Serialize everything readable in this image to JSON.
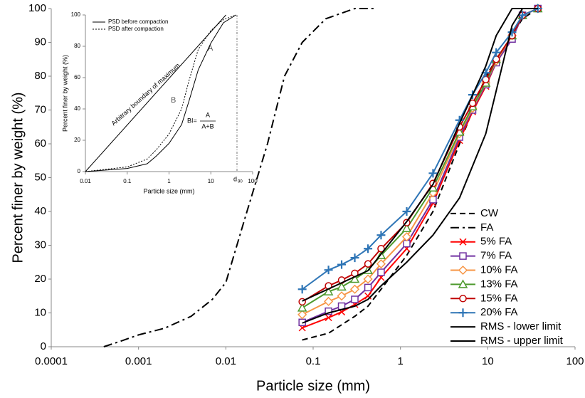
{
  "chart_data": [
    {
      "type": "line",
      "x_label": "Particle size (mm)",
      "y_label": "Percent finer by weight (%)",
      "xscale": "log",
      "xlim": [
        0.0001,
        100
      ],
      "xticks": [
        0.0001,
        0.001,
        0.01,
        0.1,
        1,
        10,
        100
      ],
      "ylim": [
        0,
        100
      ],
      "yticks": [
        0,
        10,
        20,
        30,
        40,
        50,
        60,
        70,
        80,
        90,
        100
      ],
      "grid": false,
      "legend": "lower right",
      "series": [
        {
          "name": "CW",
          "color": "#000000",
          "dash": "dashed",
          "marker": "none",
          "x": [
            0.075,
            0.15,
            0.3,
            0.425,
            0.6,
            1.18,
            2.36,
            4.75,
            9.5,
            19,
            25,
            37.5
          ],
          "values": [
            2,
            4,
            9,
            12,
            17,
            27,
            40,
            60,
            80,
            92,
            97,
            100
          ]
        },
        {
          "name": "FA",
          "color": "#000000",
          "dash": "dashdot",
          "marker": "none",
          "x": [
            0.0004,
            0.0006,
            0.001,
            0.002,
            0.004,
            0.007,
            0.01,
            0.017,
            0.03,
            0.047,
            0.075,
            0.14,
            0.3,
            0.5
          ],
          "values": [
            0,
            1.5,
            3.5,
            5.5,
            9,
            14,
            19,
            39,
            60,
            80,
            90,
            97,
            100,
            100
          ]
        },
        {
          "name": "5% FA",
          "color": "#ff0000",
          "dash": "solid",
          "marker": "x",
          "x": [
            0.075,
            0.15,
            0.212,
            0.3,
            0.425,
            0.6,
            1.18,
            2.36,
            4.75,
            6.7,
            9.5,
            12.5,
            19,
            25,
            37.5
          ],
          "values": [
            5.6,
            8.6,
            10.3,
            12.5,
            15,
            20.5,
            29,
            42.5,
            61,
            69.5,
            77,
            84,
            91,
            98,
            100
          ]
        },
        {
          "name": "7% FA",
          "color": "#7030a0",
          "dash": "solid",
          "marker": "square",
          "x": [
            0.075,
            0.15,
            0.212,
            0.3,
            0.425,
            0.6,
            1.18,
            2.36,
            4.75,
            6.7,
            9.5,
            12.5,
            19,
            25,
            37.5
          ],
          "values": [
            7.2,
            10.5,
            12,
            14,
            17.5,
            22,
            30.5,
            43.5,
            62,
            70,
            77.5,
            84,
            91,
            98,
            100
          ]
        },
        {
          "name": "10% FA",
          "color": "#f79646",
          "dash": "solid",
          "marker": "diamond",
          "x": [
            0.075,
            0.15,
            0.212,
            0.3,
            0.425,
            0.6,
            1.18,
            2.36,
            4.75,
            6.7,
            9.5,
            12.5,
            19,
            25,
            37.5
          ],
          "values": [
            9.5,
            13.4,
            15,
            17,
            20,
            24.5,
            32.5,
            45.5,
            63,
            70.5,
            78,
            84.5,
            92,
            98,
            100
          ]
        },
        {
          "name": "13% FA",
          "color": "#4e9a2e",
          "dash": "solid",
          "marker": "triangle",
          "x": [
            0.075,
            0.15,
            0.212,
            0.3,
            0.425,
            0.6,
            1.18,
            2.36,
            4.75,
            6.7,
            9.5,
            12.5,
            19,
            25,
            37.5
          ],
          "values": [
            11.5,
            16.3,
            17.7,
            20,
            22.6,
            27,
            35,
            47,
            63.5,
            71,
            78,
            85,
            92,
            98,
            100
          ]
        },
        {
          "name": "15% FA",
          "color": "#c00000",
          "dash": "solid",
          "marker": "circle",
          "x": [
            0.075,
            0.15,
            0.212,
            0.3,
            0.425,
            0.6,
            1.18,
            2.36,
            4.75,
            6.7,
            9.5,
            12.5,
            19,
            25,
            37.5
          ],
          "values": [
            13.3,
            18,
            19.7,
            21.7,
            24.5,
            29,
            36.7,
            48.3,
            65,
            72,
            79,
            85,
            92,
            98,
            100
          ]
        },
        {
          "name": "20% FA",
          "color": "#2e75b6",
          "dash": "solid",
          "marker": "plus",
          "x": [
            0.075,
            0.15,
            0.212,
            0.3,
            0.425,
            0.6,
            1.18,
            2.36,
            4.75,
            6.7,
            9.5,
            12.5,
            19,
            25,
            37.5
          ],
          "values": [
            17,
            22.7,
            24.3,
            26.3,
            29,
            33,
            40,
            51.3,
            67,
            74.5,
            81,
            87,
            93,
            98,
            100
          ]
        },
        {
          "name": "RMS - lower limit",
          "color": "#000000",
          "dash": "solid",
          "marker": "none",
          "x": [
            0.075,
            0.15,
            0.3,
            0.425,
            0.6,
            1.18,
            2.36,
            4.75,
            9.5,
            19,
            25,
            37.5
          ],
          "values": [
            7,
            10,
            12,
            14,
            18,
            25,
            33,
            44,
            63,
            95,
            100,
            100
          ]
        },
        {
          "name": "RMS - upper limit",
          "color": "#000000",
          "dash": "solid",
          "marker": "none",
          "x": [
            0.075,
            0.425,
            1.18,
            2.36,
            4.75,
            9.5,
            12.5,
            19,
            37.5
          ],
          "values": [
            13.5,
            22.5,
            37,
            48,
            66,
            83,
            92,
            100,
            100
          ]
        }
      ]
    },
    {
      "type": "line",
      "x_label": "Particle size (mm)",
      "y_label": "Percent finer by weight (%)",
      "xscale": "log",
      "xlim": [
        0.01,
        100
      ],
      "xticks": [
        0.01,
        0.1,
        1,
        10,
        100
      ],
      "ylim": [
        0,
        100
      ],
      "yticks": [
        0,
        20,
        40,
        60,
        80,
        100
      ],
      "grid": false,
      "legend": "upper left",
      "annotations": {
        "region_a": "A",
        "region_b": "B",
        "boundary": "Arbitrary boundary of maximum",
        "bi_lhs": "BI=",
        "bi_numerator": "A",
        "bi_denominator": "A+B",
        "d": "d",
        "d_subscript": "90"
      },
      "series": [
        {
          "name": "PSD before compaction",
          "color": "#000000",
          "dash": "solid",
          "marker": "none",
          "x": [
            0.01,
            0.1,
            0.3,
            0.5,
            1,
            2,
            3,
            5,
            10,
            20,
            40
          ],
          "values": [
            0,
            2,
            5,
            10,
            18,
            30,
            45,
            65,
            82,
            95,
            100
          ]
        },
        {
          "name": "PSD after compaction",
          "color": "#000000",
          "dash": "dotted",
          "marker": "none",
          "x": [
            0.01,
            0.1,
            0.3,
            0.5,
            1,
            2,
            3,
            5,
            10,
            20,
            40
          ],
          "values": [
            0,
            3,
            8,
            14,
            24,
            40,
            58,
            78,
            90,
            97,
            100
          ]
        },
        {
          "color": "#000000",
          "dash": "solid",
          "marker": "none",
          "x": [
            0.01,
            23
          ],
          "values": [
            0,
            100
          ]
        }
      ]
    }
  ]
}
